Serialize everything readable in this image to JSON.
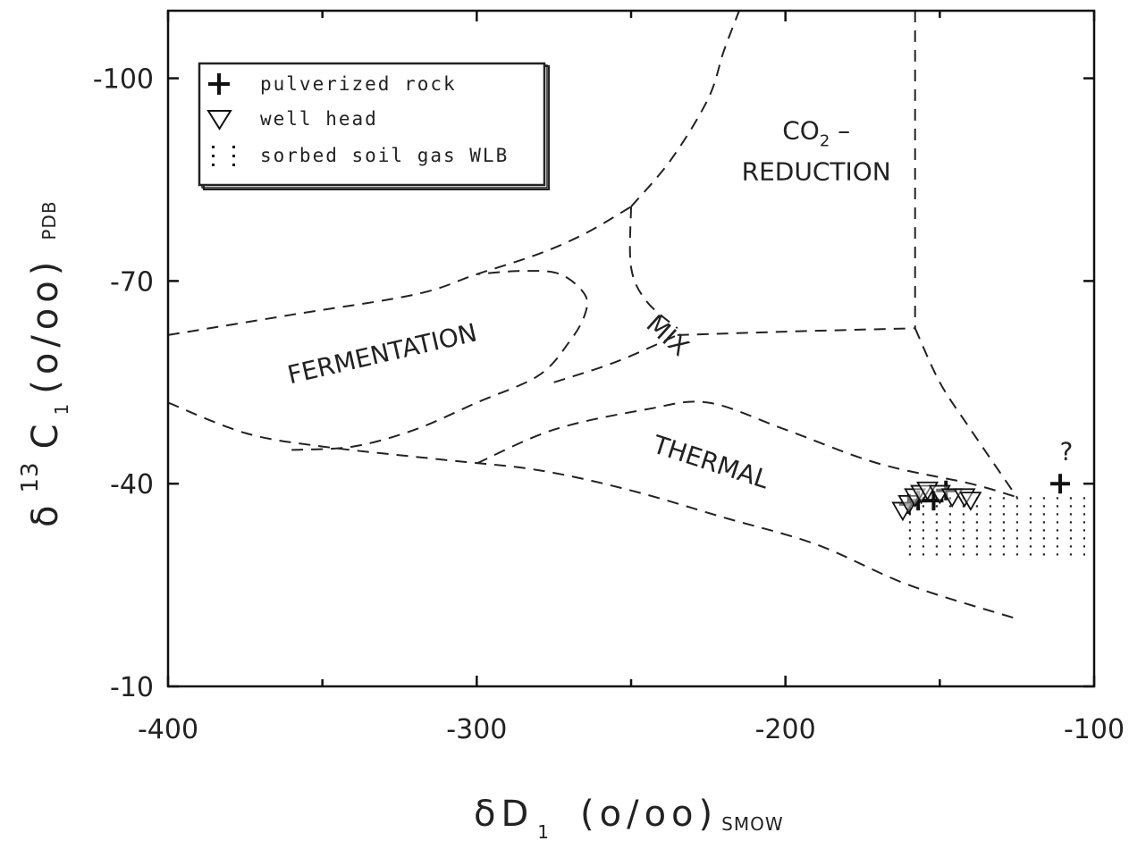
{
  "chart_data": {
    "type": "scatter",
    "xlim": [
      -400,
      -100
    ],
    "ylim": [
      -10,
      -110
    ],
    "y_axis_inverted": true,
    "x_ticks": [
      -400,
      -300,
      -200,
      -100
    ],
    "y_ticks": [
      -100,
      -70,
      -40,
      -10
    ],
    "x_tick_labels": [
      "-400",
      "-300",
      "-200",
      "-100"
    ],
    "y_tick_labels": [
      "-100",
      "-70",
      "-40",
      "-10"
    ],
    "xlabel": {
      "main": "δD",
      "sub1": "1",
      "units": "(o/oo)",
      "sub2": "SMOW"
    },
    "ylabel": {
      "main": "δ",
      "sup": "13",
      "c": "C",
      "sub1": "1",
      "units": "(o/oo)",
      "sub2": "PDB"
    },
    "grid": false,
    "legend_position": "top-left",
    "legend": [
      {
        "marker": "plus",
        "label": "pulverized rock"
      },
      {
        "marker": "triangle-down",
        "label": "well head"
      },
      {
        "marker": "dots",
        "label": "sorbed soil gas WLB"
      }
    ],
    "region_labels": [
      {
        "text": "CO",
        "sub": "2",
        "suffix": " –",
        "line2": "REDUCTION",
        "x": -190,
        "y": -91
      },
      {
        "text": "FERMENTATION",
        "x": -330,
        "y": -58,
        "rotate": -13
      },
      {
        "text": "MIX",
        "x": -240,
        "y": -61,
        "rotate": 42
      },
      {
        "text": "THERMAL",
        "x": -225,
        "y": -42,
        "rotate": 18
      },
      {
        "text": "?",
        "x": -109,
        "y": -43.5
      }
    ],
    "series": [
      {
        "name": "pulverized rock",
        "marker": "plus",
        "x": [
          -160,
          -157,
          -152,
          -148,
          -111
        ],
        "y": [
          -37,
          -37.5,
          -37.5,
          -39,
          -40
        ]
      },
      {
        "name": "well head",
        "marker": "triangle-down",
        "x": [
          -162,
          -160,
          -158,
          -156,
          -154,
          -150,
          -146,
          -142,
          -140
        ],
        "y": [
          -36,
          -37,
          -38,
          -38.5,
          -39,
          -38.5,
          -38,
          -38,
          -37.5
        ]
      }
    ],
    "shaded_region": {
      "name": "sorbed soil gas WLB",
      "x": [
        -160,
        -100
      ],
      "y": [
        -29,
        -38
      ]
    },
    "boundaries": [
      {
        "name": "fermentation-upper",
        "points": [
          [
            -400,
            -62
          ],
          [
            -360,
            -65
          ],
          [
            -320,
            -68
          ],
          [
            -300,
            -71
          ],
          [
            -280,
            -74
          ],
          [
            -265,
            -77
          ],
          [
            -250,
            -81
          ]
        ]
      },
      {
        "name": "upper-left-diagonal",
        "points": [
          [
            -250,
            -81
          ],
          [
            -237,
            -88
          ],
          [
            -225,
            -97
          ],
          [
            -220,
            -104
          ],
          [
            -215,
            -110
          ]
        ]
      },
      {
        "name": "mix-top",
        "points": [
          [
            -250,
            -81
          ],
          [
            -250,
            -72
          ],
          [
            -245,
            -67
          ],
          [
            -235,
            -63
          ]
        ]
      },
      {
        "name": "co2-vertical",
        "points": [
          [
            -158,
            -110
          ],
          [
            -158,
            -63
          ]
        ]
      },
      {
        "name": "mid-line",
        "points": [
          [
            -235,
            -62
          ],
          [
            -200,
            -62.5
          ],
          [
            -158,
            -63
          ]
        ]
      },
      {
        "name": "co2-lower",
        "points": [
          [
            -158,
            -63
          ],
          [
            -150,
            -55
          ],
          [
            -140,
            -48
          ],
          [
            -125,
            -38
          ]
        ]
      },
      {
        "name": "thermal-upper",
        "points": [
          [
            -300,
            -43
          ],
          [
            -275,
            -48
          ],
          [
            -245,
            -51
          ],
          [
            -225,
            -52
          ],
          [
            -200,
            -48
          ],
          [
            -170,
            -43
          ],
          [
            -140,
            -40
          ],
          [
            -125,
            -38
          ]
        ]
      },
      {
        "name": "lower-boundary",
        "points": [
          [
            -400,
            -52
          ],
          [
            -375,
            -47.5
          ],
          [
            -350,
            -45.5
          ],
          [
            -310,
            -43.5
          ],
          [
            -280,
            -42
          ],
          [
            -250,
            -39
          ],
          [
            -220,
            -35
          ],
          [
            -190,
            -31
          ],
          [
            -160,
            -25
          ],
          [
            -125,
            -20
          ]
        ]
      },
      {
        "name": "fermentation-loop",
        "points": [
          [
            -360,
            -45
          ],
          [
            -340,
            -45.5
          ],
          [
            -320,
            -48
          ],
          [
            -300,
            -52
          ],
          [
            -280,
            -56
          ],
          [
            -270,
            -61
          ],
          [
            -265,
            -65
          ],
          [
            -265,
            -68
          ],
          [
            -273,
            -71
          ],
          [
            -285,
            -71.5
          ],
          [
            -300,
            -71
          ]
        ]
      },
      {
        "name": "mix-connector",
        "points": [
          [
            -275,
            -55
          ],
          [
            -255,
            -58
          ],
          [
            -235,
            -62
          ]
        ]
      }
    ]
  }
}
